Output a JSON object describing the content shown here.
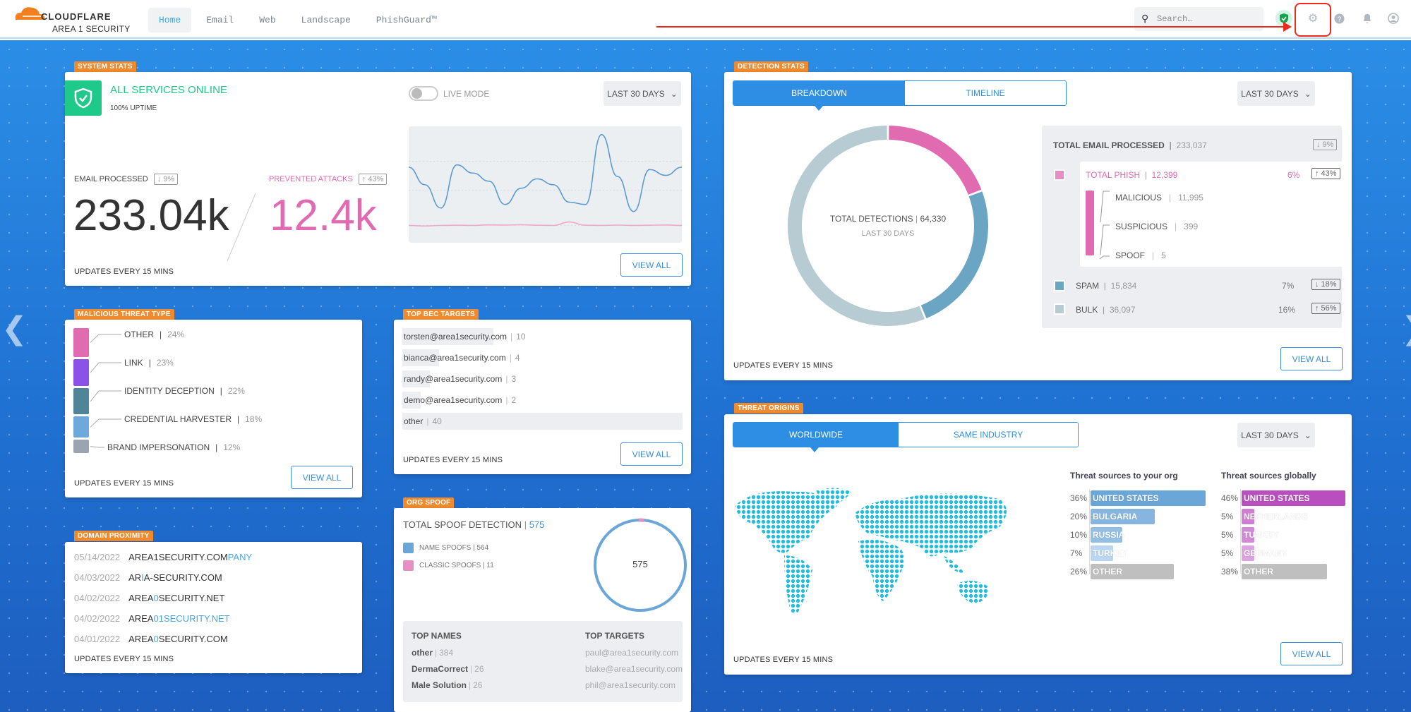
{
  "header": {
    "logo_main": "CLOUDFLARE",
    "logo_sub": "AREA 1 SECURITY",
    "nav": [
      "Home",
      "Email",
      "Web",
      "Landscape",
      "PhishGuard™"
    ],
    "active_nav": "Home",
    "search_placeholder": "Search…",
    "icons": [
      "shield-check-icon",
      "gear-icon",
      "help-icon",
      "bell-icon",
      "user-icon"
    ]
  },
  "colors": {
    "accent": "#2d8ee4",
    "tag": "#f08a2c",
    "phish": "#e06bb0",
    "spam": "#6aa6c4",
    "bulk": "#b7cbd3",
    "online": "#1fc98a",
    "global": "#b94fbf"
  },
  "system_stats": {
    "tag": "SYSTEM STATS",
    "status": "ALL SERVICES ONLINE",
    "uptime": "100% UPTIME",
    "live_mode": "LIVE MODE",
    "live_mode_on": false,
    "range": "LAST 30 DAYS",
    "email_label": "EMAIL PROCESSED",
    "email_change": "↓ 9%",
    "email_value": "233.04k",
    "prevented_label": "PREVENTED ATTACKS",
    "prevented_change": "↑ 43%",
    "prevented_value": "12.4k",
    "updates": "UPDATES EVERY 15 MINS",
    "view_all": "VIEW ALL",
    "sparkline": {
      "email": [
        60,
        45,
        25,
        62,
        55,
        48,
        28,
        42,
        50,
        45,
        30,
        28,
        88,
        52,
        22,
        58,
        53,
        60
      ],
      "attacks": [
        10,
        9.5,
        10,
        10.2,
        10,
        10.5,
        10.3,
        10.6,
        10.2,
        10,
        13,
        10.2,
        10,
        10.3,
        10,
        10.2,
        10.4,
        10
      ]
    }
  },
  "malicious_threat": {
    "tag": "MALICIOUS THREAT TYPE",
    "items": [
      {
        "label": "OTHER",
        "pct": "24%",
        "value": 24,
        "color": "#e06bb0"
      },
      {
        "label": "LINK",
        "pct": "23%",
        "value": 23,
        "color": "#8a52e6"
      },
      {
        "label": "IDENTITY DECEPTION",
        "pct": "22%",
        "value": 22,
        "color": "#4f8597"
      },
      {
        "label": "CREDENTIAL HARVESTER",
        "pct": "18%",
        "value": 18,
        "color": "#6fa8dc"
      },
      {
        "label": "BRAND IMPERSONATION",
        "pct": "12%",
        "value": 12,
        "color": "#9aa5b1"
      }
    ],
    "updates": "UPDATES EVERY 15 MINS",
    "view_all": "VIEW ALL"
  },
  "bec": {
    "tag": "TOP BEC TARGETS",
    "items": [
      {
        "name": "torsten@area1security.com",
        "count": 10
      },
      {
        "name": "bianca@area1security.com",
        "count": 4
      },
      {
        "name": "randy@area1security.com",
        "count": 3
      },
      {
        "name": "demo@area1security.com",
        "count": 2
      },
      {
        "name": "other",
        "count": 40
      }
    ],
    "updates": "UPDATES EVERY 15 MINS",
    "view_all": "VIEW ALL"
  },
  "domain": {
    "tag": "DOMAIN PROXIMITY",
    "items": [
      {
        "date": "05/14/2022",
        "a": "AREA1SECURITY.COM",
        "b": "PANY",
        "c": ""
      },
      {
        "date": "04/03/2022",
        "a": "AR",
        "b": "I",
        "c": "A-SECURITY.COM"
      },
      {
        "date": "04/02/2022",
        "a": "AREA",
        "b": "0",
        "c": "SECURITY.NET"
      },
      {
        "date": "04/02/2022",
        "a": "AREA",
        "b": "01SECURITY.NET",
        "c": ""
      },
      {
        "date": "04/01/2022",
        "a": "AREA",
        "b": "0",
        "c": "SECURITY.COM"
      }
    ],
    "updates": "UPDATES EVERY 15 MINS"
  },
  "org_spoof": {
    "tag": "ORG SPOOF",
    "total_label": "TOTAL SPOOF DETECTION",
    "total": "575",
    "name_spoofs": "NAME SPOOFS | 564",
    "name_value": 564,
    "classic_spoofs": "CLASSIC SPOOFS | 11",
    "classic_value": 11,
    "center": "575",
    "top_names_label": "TOP NAMES",
    "top_names": [
      {
        "n": "other",
        "v": "384"
      },
      {
        "n": "DermaCorrect",
        "v": "26"
      },
      {
        "n": "Male Solution",
        "v": "26"
      }
    ],
    "top_targets_label": "TOP TARGETS",
    "top_targets": [
      "paul@area1security.com",
      "blake@area1security.com",
      "phil@area1security.com"
    ]
  },
  "detection": {
    "tag": "DETECTION STATS",
    "tabs": [
      "BREAKDOWN",
      "TIMELINE"
    ],
    "range": "LAST 30 DAYS",
    "donut_label": "TOTAL DETECTIONS",
    "donut_total": "64,330",
    "donut_sub": "LAST 30 DAYS",
    "total_label": "TOTAL EMAIL PROCESSED",
    "total_value": "233,037",
    "total_change": "↓ 9%",
    "phish": {
      "label": "TOTAL PHISH",
      "value": "12,399",
      "n": 12399,
      "pct": "6%",
      "change": "↑ 43%"
    },
    "sub": [
      {
        "label": "MALICIOUS",
        "value": "11,995"
      },
      {
        "label": "SUSPICIOUS",
        "value": "399"
      },
      {
        "label": "SPOOF",
        "value": "5"
      }
    ],
    "spam": {
      "label": "SPAM",
      "value": "15,834",
      "n": 15834,
      "pct": "7%",
      "change": "↓ 18%"
    },
    "bulk": {
      "label": "BULK",
      "value": "36,097",
      "n": 36097,
      "pct": "16%",
      "change": "↑ 56%"
    },
    "updates": "UPDATES EVERY 15 MINS",
    "view_all": "VIEW ALL"
  },
  "origins": {
    "tag": "THREAT ORIGINS",
    "tabs": [
      "WORLDWIDE",
      "SAME INDUSTRY"
    ],
    "range": "LAST 30 DAYS",
    "org_title": "Threat sources to your org",
    "global_title": "Threat sources globally",
    "org": [
      {
        "pct": "36%",
        "v": 36,
        "c": "UNITED STATES"
      },
      {
        "pct": "20%",
        "v": 20,
        "c": "BULGARIA"
      },
      {
        "pct": "10%",
        "v": 10,
        "c": "RUSSIA"
      },
      {
        "pct": "7%",
        "v": 7,
        "c": "TURKEY"
      },
      {
        "pct": "26%",
        "v": 26,
        "c": "OTHER"
      }
    ],
    "global": [
      {
        "pct": "46%",
        "v": 46,
        "c": "UNITED STATES"
      },
      {
        "pct": "5%",
        "v": 5,
        "c": "NETHERLANDS"
      },
      {
        "pct": "5%",
        "v": 5,
        "c": "TURKEY"
      },
      {
        "pct": "5%",
        "v": 5,
        "c": "GERMANY"
      },
      {
        "pct": "38%",
        "v": 38,
        "c": "OTHER"
      }
    ],
    "updates": "UPDATES EVERY 15 MINS",
    "view_all": "VIEW ALL"
  }
}
